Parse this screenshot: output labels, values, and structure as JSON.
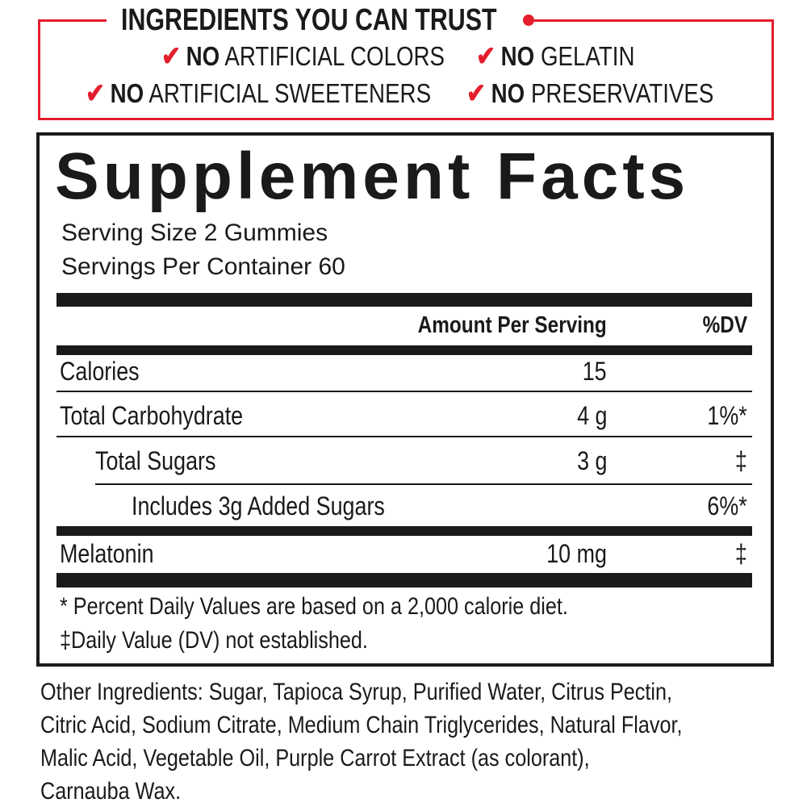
{
  "trust": {
    "title": "INGREDIENTS YOU CAN TRUST",
    "accent_color": "#e31e2d",
    "claims": [
      {
        "bold": "NO",
        "text": " ARTIFICIAL COLORS"
      },
      {
        "bold": "NO",
        "text": " GELATIN"
      },
      {
        "bold": "NO",
        "text": " ARTIFICIAL SWEETENERS"
      },
      {
        "bold": "NO",
        "text": " PRESERVATIVES"
      }
    ],
    "check_icon": "✔"
  },
  "facts": {
    "title": "Supplement Facts",
    "serving_size": "Serving Size 2 Gummies",
    "servings_per_container": "Servings Per Container 60",
    "header": {
      "amount": "Amount Per Serving",
      "dv": "%DV"
    },
    "rows": [
      {
        "label": "Calories",
        "amount": "15",
        "dv": ""
      },
      {
        "label": "Total Carbohydrate",
        "amount": "4 g",
        "dv": "1%*"
      },
      {
        "label": "Total Sugars",
        "amount": "3 g",
        "dv": "‡"
      },
      {
        "label": "Includes 3g Added Sugars",
        "amount": "",
        "dv": "6%*"
      },
      {
        "label": "Melatonin",
        "amount": "10 mg",
        "dv": "‡"
      }
    ],
    "footnotes": [
      "* Percent Daily Values are based on a 2,000 calorie diet.",
      "‡Daily Value (DV) not established."
    ]
  },
  "other_ingredients": [
    "Other Ingredients: Sugar, Tapioca Syrup, Purified Water, Citrus Pectin,",
    "Citric Acid, Sodium Citrate, Medium Chain Triglycerides, Natural Flavor,",
    "Malic Acid, Vegetable Oil, Purple Carrot Extract (as colorant),",
    "Carnauba Wax."
  ]
}
